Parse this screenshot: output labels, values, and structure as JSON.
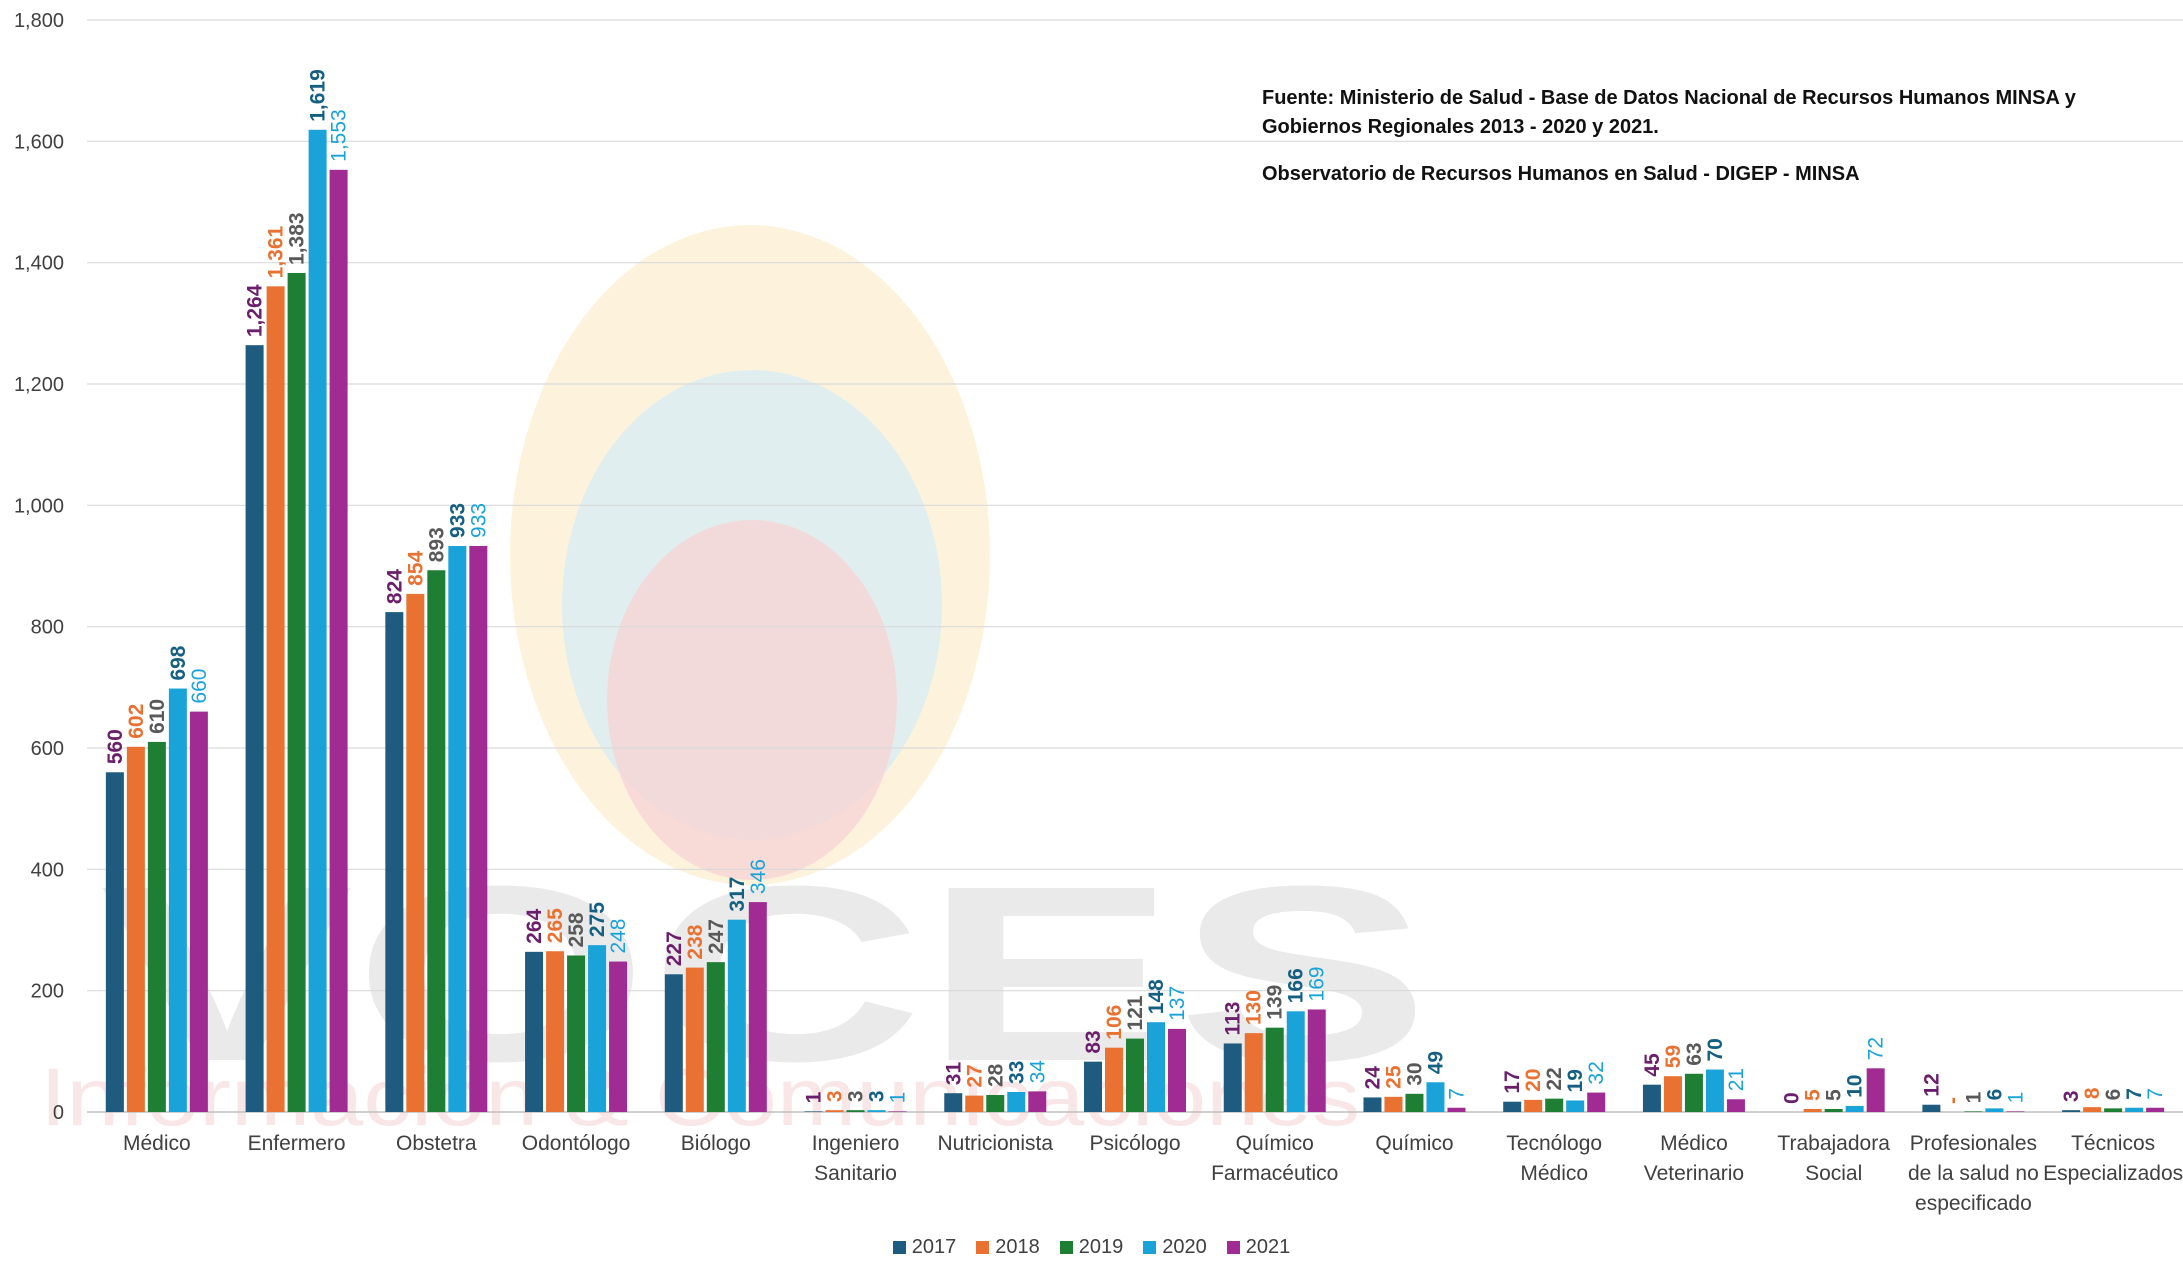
{
  "chart_data": {
    "type": "bar",
    "title": "",
    "xlabel": "",
    "ylabel": "",
    "ylim": [
      0,
      1800
    ],
    "yticks": [
      0,
      200,
      400,
      600,
      800,
      1000,
      1200,
      1400,
      1600,
      1800
    ],
    "ytick_labels": [
      "0",
      "200",
      "400",
      "600",
      "800",
      "1,000",
      "1,200",
      "1,400",
      "1,600",
      "1,800"
    ],
    "grid": "horizontal",
    "legend_position": "bottom",
    "categories": [
      "Médico",
      "Enfermero",
      "Obstetra",
      "Odontólogo",
      "Biólogo",
      "Ingeniero\nSanitario",
      "Nutricionista",
      "Psicólogo",
      "Químico\nFarmacéutico",
      "Químico",
      "Tecnólogo\nMédico",
      "Médico\nVeterinario",
      "Trabajadora\nSocial",
      "Profesionales\nde la salud no\nespecificado",
      "Técnicos\nEspecializados"
    ],
    "series": [
      {
        "name": "2017",
        "color": "#1f5b7f",
        "label_color": "#6b1e6b",
        "label_weight": "bold",
        "values": [
          560,
          1264,
          824,
          264,
          227,
          1,
          31,
          83,
          113,
          24,
          17,
          45,
          0,
          12,
          3
        ],
        "labels": [
          "560",
          "1,264",
          "824",
          "264",
          "227",
          "1",
          "31",
          "83",
          "113",
          "24",
          "17",
          "45",
          "0",
          "12",
          "3"
        ]
      },
      {
        "name": "2018",
        "color": "#e97132",
        "label_color": "#e97132",
        "label_weight": "bold",
        "values": [
          602,
          1361,
          854,
          265,
          238,
          3,
          27,
          106,
          130,
          25,
          20,
          59,
          5,
          0,
          8
        ],
        "labels": [
          "602",
          "1,361",
          "854",
          "265",
          "238",
          "3",
          "27",
          "106",
          "130",
          "25",
          "20",
          "59",
          "5",
          "-",
          "8"
        ]
      },
      {
        "name": "2019",
        "color": "#1e7e34",
        "label_color": "#595959",
        "label_weight": "bold",
        "values": [
          610,
          1383,
          893,
          258,
          247,
          3,
          28,
          121,
          139,
          30,
          22,
          63,
          5,
          1,
          6
        ],
        "labels": [
          "610",
          "1,383",
          "893",
          "258",
          "247",
          "3",
          "28",
          "121",
          "139",
          "30",
          "22",
          "63",
          "5",
          "1",
          "6"
        ]
      },
      {
        "name": "2020",
        "color": "#1aa3d9",
        "label_color": "#156082",
        "label_weight": "bold",
        "values": [
          698,
          1619,
          933,
          275,
          317,
          3,
          33,
          148,
          166,
          49,
          19,
          70,
          10,
          6,
          7
        ],
        "labels": [
          "698",
          "1,619",
          "933",
          "275",
          "317",
          "3",
          "33",
          "148",
          "166",
          "49",
          "19",
          "70",
          "10",
          "6",
          "7"
        ]
      },
      {
        "name": "2021",
        "color": "#a02b93",
        "label_color": "#1aa3d9",
        "label_weight": "normal",
        "values": [
          660,
          1553,
          933,
          248,
          346,
          1,
          34,
          137,
          169,
          7,
          32,
          21,
          72,
          1,
          7
        ],
        "labels": [
          "660",
          "1,553",
          "933",
          "248",
          "346",
          "1",
          "34",
          "137",
          "169",
          "7",
          "32",
          "21",
          "72",
          "1",
          "7"
        ]
      }
    ]
  },
  "source_note": {
    "line1": "Fuente: Ministerio de Salud - Base de Datos Nacional de Recursos Humanos MINSA y Gobiernos Regionales 2013 - 2020 y 2021.",
    "line2": "Observatorio de Recursos Humanos en Salud - DIGEP - MINSA"
  },
  "watermark": {
    "word": "VOCES",
    "tagline": "Información & Comunicaciones"
  }
}
